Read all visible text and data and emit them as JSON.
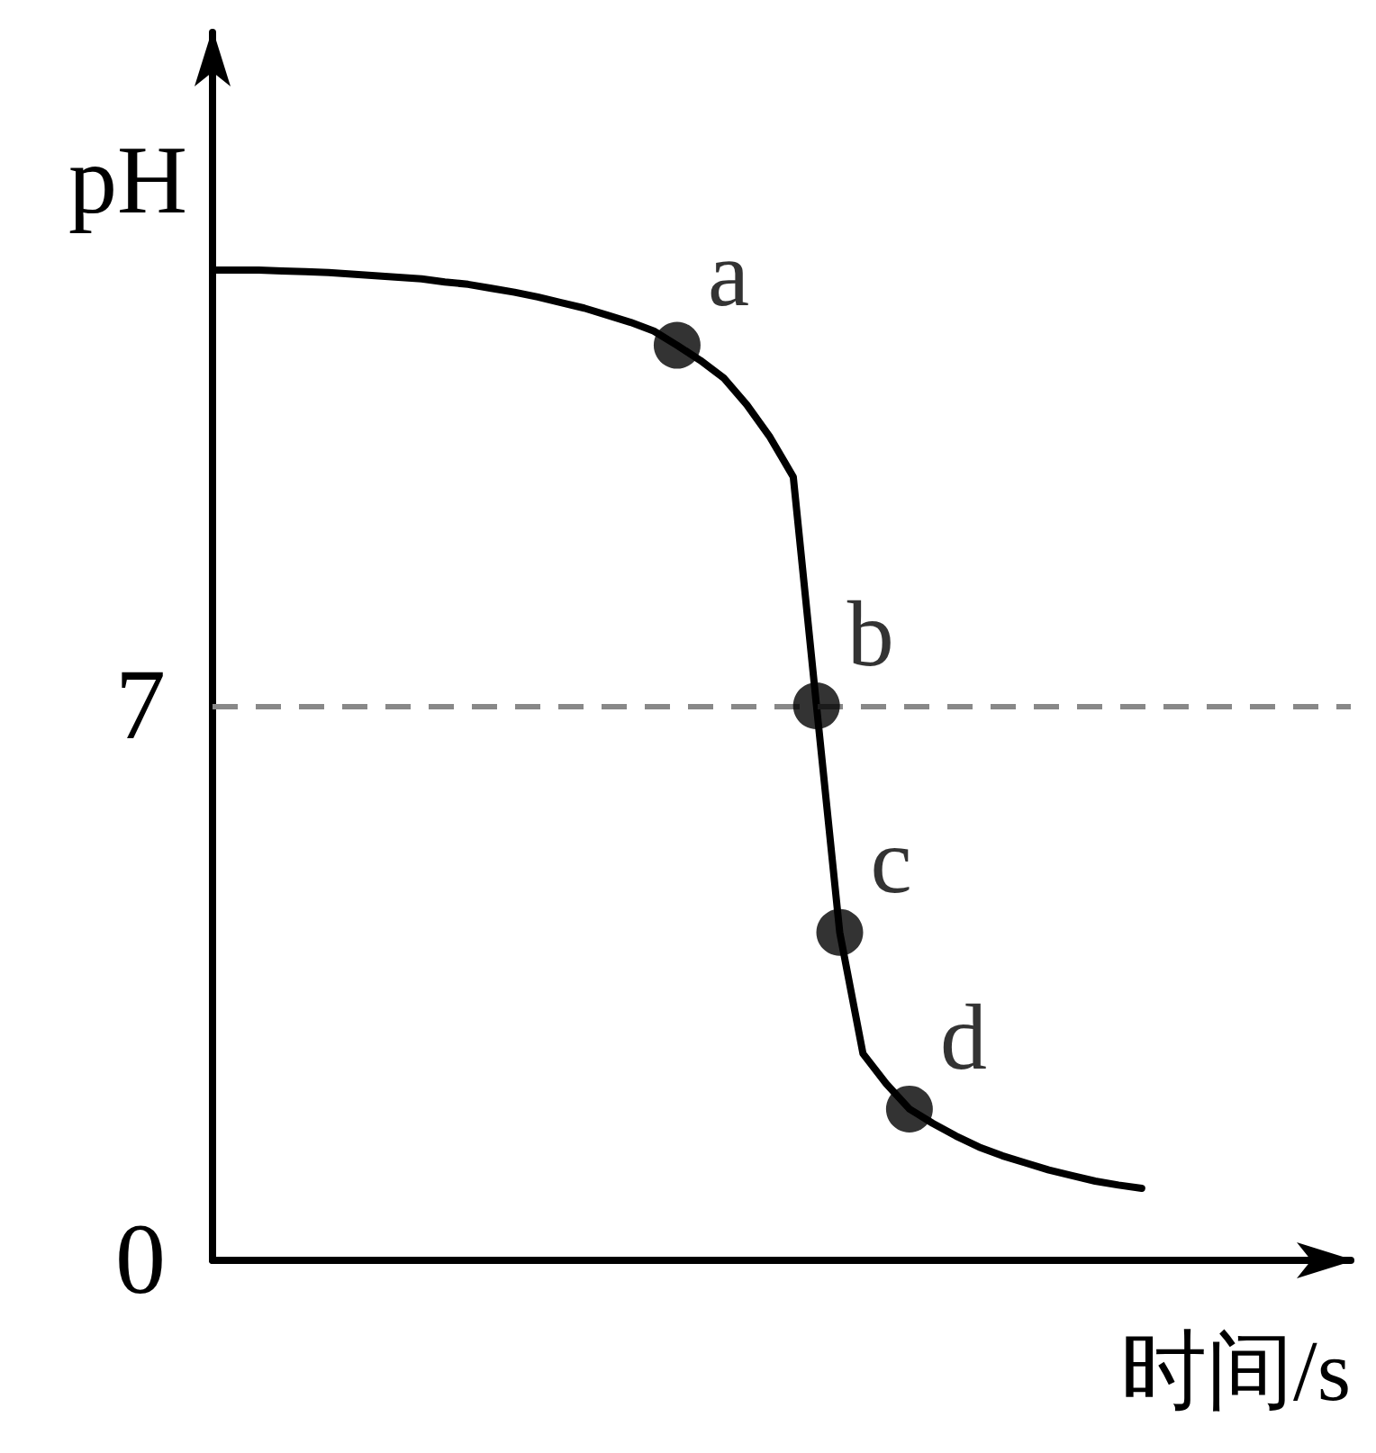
{
  "chart_data": {
    "type": "line",
    "xlabel": "时间/s",
    "ylabel": "pH",
    "categories": [
      null,
      null,
      null,
      null,
      null,
      null,
      null,
      null,
      null,
      null,
      null,
      null,
      null,
      null,
      null,
      null,
      null,
      null,
      null,
      null,
      null,
      null,
      null,
      null,
      null,
      null,
      null,
      null,
      null,
      null,
      null,
      null,
      null,
      null,
      null,
      null,
      null,
      null,
      null,
      null,
      null,
      null,
      null,
      null,
      null,
      null,
      null,
      null,
      null,
      null
    ],
    "ylim": [
      0,
      15.5
    ],
    "yticks": [
      0,
      7
    ],
    "marker": "none",
    "line_style": "solid",
    "series": [
      {
        "color": "#000000",
        "values": [
          12.5,
          12.5,
          12.5,
          12.49,
          12.48,
          12.47,
          12.45,
          12.43,
          12.41,
          12.39,
          12.35,
          12.32,
          12.27,
          12.22,
          12.16,
          12.09,
          12.02,
          11.93,
          11.84,
          11.73,
          11.55,
          11.36,
          11.14,
          10.8,
          10.39,
          9.89,
          7,
          4.14,
          2.61,
          2.23,
          1.91,
          1.73,
          1.57,
          1.43,
          1.32,
          1.23,
          1.14,
          1.07,
          1.0,
          0.95,
          0.91,
          null,
          null,
          null,
          null,
          null,
          null,
          null,
          null,
          null
        ]
      },
      {
        "type": "scatter",
        "color": "#000000",
        "marker": "circle",
        "values": [
          null,
          null,
          null,
          null,
          null,
          null,
          null,
          null,
          null,
          null,
          null,
          null,
          null,
          null,
          null,
          null,
          null,
          null,
          null,
          null,
          11.55,
          null,
          null,
          null,
          null,
          null,
          7,
          4.14,
          null,
          null,
          1.91,
          null,
          null,
          null,
          null,
          null,
          null,
          null,
          null,
          null,
          null,
          null,
          null,
          null,
          null,
          null,
          null,
          null,
          null,
          null
        ],
        "value_labels": [
          null,
          null,
          null,
          null,
          null,
          null,
          null,
          null,
          null,
          null,
          null,
          null,
          null,
          null,
          null,
          null,
          null,
          null,
          null,
          null,
          "a",
          null,
          null,
          null,
          null,
          null,
          "b",
          "c",
          null,
          null,
          "d",
          null,
          null,
          null,
          null,
          null,
          null,
          null,
          null,
          null,
          null,
          null,
          null,
          null,
          null,
          null,
          null,
          null,
          null,
          null
        ]
      }
    ],
    "ref_lines": [
      {
        "axis": "y",
        "value": 7,
        "color": "#888888",
        "line_style": "dashed"
      }
    ]
  }
}
